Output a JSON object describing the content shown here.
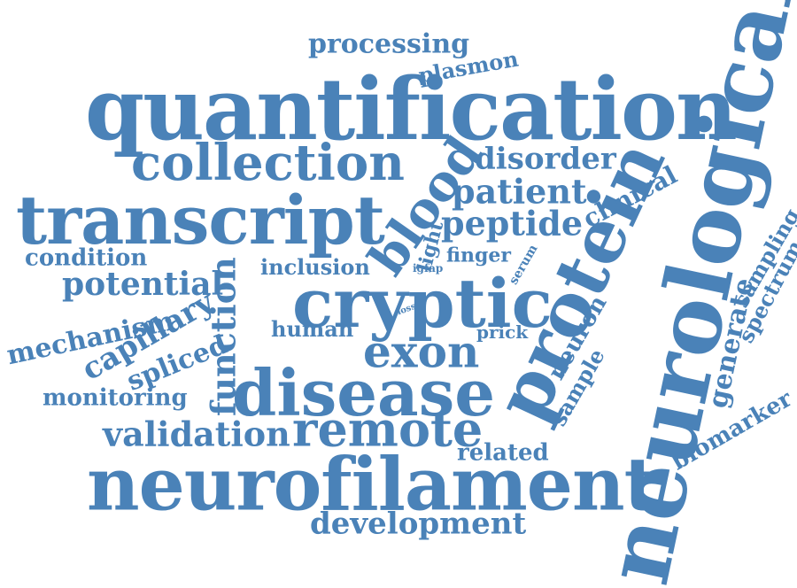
{
  "color": "#4A82B8",
  "words": [
    {
      "id": "quantification",
      "text": "quantification"
    },
    {
      "id": "neurological",
      "text": "neurological"
    },
    {
      "id": "protein",
      "text": "protein"
    },
    {
      "id": "neurofilament",
      "text": "neurofilament"
    },
    {
      "id": "transcript",
      "text": "transcript"
    },
    {
      "id": "collection",
      "text": "collection"
    },
    {
      "id": "cryptic",
      "text": "cryptic"
    },
    {
      "id": "disease",
      "text": "disease"
    },
    {
      "id": "remote",
      "text": "remote"
    },
    {
      "id": "exon",
      "text": "exon"
    },
    {
      "id": "blood",
      "text": "blood"
    },
    {
      "id": "function",
      "text": "function"
    },
    {
      "id": "validation",
      "text": "validation"
    },
    {
      "id": "development",
      "text": "development"
    },
    {
      "id": "processing",
      "text": "processing"
    },
    {
      "id": "plasmon",
      "text": "plasmon"
    },
    {
      "id": "disorder",
      "text": "disorder"
    },
    {
      "id": "patient",
      "text": "patient"
    },
    {
      "id": "peptide",
      "text": "peptide"
    },
    {
      "id": "clinical",
      "text": "clinical"
    },
    {
      "id": "potential",
      "text": "potential"
    },
    {
      "id": "condition",
      "text": "condition"
    },
    {
      "id": "mechanism",
      "text": "mechanism"
    },
    {
      "id": "capillary",
      "text": "capillary"
    },
    {
      "id": "spliced",
      "text": "spliced"
    },
    {
      "id": "monitoring",
      "text": "monitoring"
    },
    {
      "id": "inclusion",
      "text": "inclusion"
    },
    {
      "id": "light",
      "text": "light"
    },
    {
      "id": "finger",
      "text": "finger"
    },
    {
      "id": "serum",
      "text": "serum"
    },
    {
      "id": "igfap",
      "text": "igfap"
    },
    {
      "id": "loss",
      "text": "loss"
    },
    {
      "id": "human",
      "text": "human"
    },
    {
      "id": "prick",
      "text": "prick"
    },
    {
      "id": "neuron",
      "text": "neuron"
    },
    {
      "id": "sample",
      "text": "sample"
    },
    {
      "id": "related",
      "text": "related"
    },
    {
      "id": "generate",
      "text": "generate"
    },
    {
      "id": "sampling",
      "text": "sampling"
    },
    {
      "id": "spectrum",
      "text": "spectrum"
    },
    {
      "id": "biomarker",
      "text": "biomarker"
    }
  ]
}
